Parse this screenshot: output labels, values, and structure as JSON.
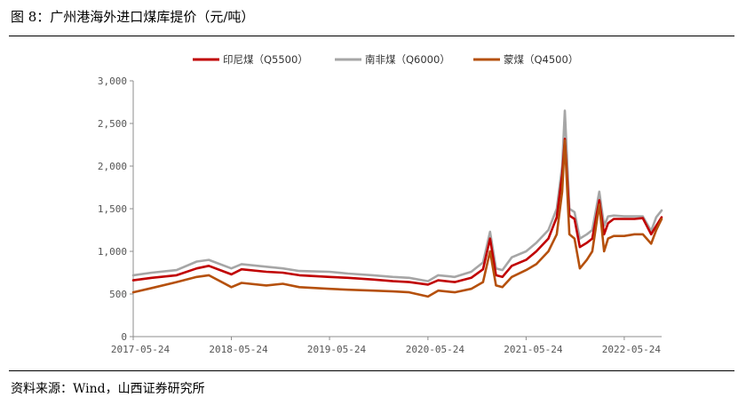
{
  "figure_title": "图 8：广州港海外进口煤库提价（元/吨）",
  "source_note": "资料来源：Wind，山西证券研究所",
  "chart_data": {
    "type": "line",
    "title": "",
    "xlabel": "",
    "ylabel": "",
    "ylim": [
      0,
      3000
    ],
    "yticks": [
      "0",
      "500",
      "1,000",
      "1,500",
      "2,000",
      "2,500",
      "3,000"
    ],
    "xticks": [
      "2017-05-24",
      "2018-05-24",
      "2019-05-24",
      "2020-05-24",
      "2021-05-24",
      "2022-05-24"
    ],
    "grid": false,
    "legend": "top-center",
    "series": [
      {
        "name": "印尼煤（Q5500）",
        "color": "#c00000",
        "x": [
          "2017-05-24",
          "2017-08-01",
          "2017-11-01",
          "2018-01-15",
          "2018-03-01",
          "2018-05-24",
          "2018-07-01",
          "2018-10-01",
          "2018-12-01",
          "2019-02-01",
          "2019-05-24",
          "2019-08-01",
          "2019-11-01",
          "2020-01-15",
          "2020-03-15",
          "2020-05-24",
          "2020-07-01",
          "2020-09-01",
          "2020-11-01",
          "2020-12-15",
          "2021-01-10",
          "2021-02-01",
          "2021-02-25",
          "2021-04-01",
          "2021-05-24",
          "2021-07-01",
          "2021-08-15",
          "2021-09-15",
          "2021-10-05",
          "2021-10-15",
          "2021-11-01",
          "2021-11-20",
          "2021-12-10",
          "2022-01-05",
          "2022-01-25",
          "2022-02-20",
          "2022-03-10",
          "2022-03-25",
          "2022-04-15",
          "2022-05-24",
          "2022-07-01",
          "2022-08-01",
          "2022-09-01",
          "2022-09-20",
          "2022-10-10"
        ],
        "y": [
          660,
          690,
          720,
          800,
          830,
          730,
          790,
          760,
          750,
          720,
          700,
          690,
          670,
          650,
          640,
          610,
          660,
          640,
          690,
          790,
          1150,
          720,
          700,
          830,
          900,
          1000,
          1150,
          1400,
          1900,
          2320,
          1420,
          1380,
          1050,
          1100,
          1150,
          1600,
          1200,
          1330,
          1380,
          1380,
          1380,
          1390,
          1200,
          1300,
          1400
        ]
      },
      {
        "name": "南非煤（Q6000）",
        "color": "#a6a6a6",
        "x": [
          "2017-05-24",
          "2017-08-01",
          "2017-11-01",
          "2018-01-15",
          "2018-03-01",
          "2018-05-24",
          "2018-07-01",
          "2018-10-01",
          "2018-12-01",
          "2019-02-01",
          "2019-05-24",
          "2019-08-01",
          "2019-11-01",
          "2020-01-15",
          "2020-03-15",
          "2020-05-24",
          "2020-07-01",
          "2020-09-01",
          "2020-11-01",
          "2020-12-15",
          "2021-01-10",
          "2021-02-01",
          "2021-02-25",
          "2021-04-01",
          "2021-05-24",
          "2021-07-01",
          "2021-08-15",
          "2021-09-15",
          "2021-10-05",
          "2021-10-15",
          "2021-11-01",
          "2021-11-20",
          "2021-12-10",
          "2022-01-05",
          "2022-01-25",
          "2022-02-20",
          "2022-03-10",
          "2022-03-25",
          "2022-04-15",
          "2022-05-24",
          "2022-07-01",
          "2022-08-01",
          "2022-09-01",
          "2022-09-20",
          "2022-10-10"
        ],
        "y": [
          720,
          750,
          780,
          880,
          900,
          800,
          850,
          820,
          800,
          770,
          760,
          740,
          720,
          700,
          690,
          650,
          720,
          700,
          760,
          870,
          1230,
          800,
          780,
          930,
          1000,
          1100,
          1250,
          1500,
          2000,
          2650,
          1500,
          1460,
          1150,
          1200,
          1250,
          1700,
          1300,
          1410,
          1420,
          1410,
          1410,
          1410,
          1240,
          1400,
          1480
        ]
      },
      {
        "name": "蒙煤（Q4500）",
        "color": "#b5500c",
        "x": [
          "2017-05-24",
          "2017-08-01",
          "2017-11-01",
          "2018-01-15",
          "2018-03-01",
          "2018-05-24",
          "2018-07-01",
          "2018-10-01",
          "2018-12-01",
          "2019-02-01",
          "2019-05-24",
          "2019-08-01",
          "2019-11-01",
          "2020-01-15",
          "2020-03-15",
          "2020-05-24",
          "2020-07-01",
          "2020-09-01",
          "2020-11-01",
          "2020-12-15",
          "2021-01-10",
          "2021-02-01",
          "2021-02-25",
          "2021-04-01",
          "2021-05-24",
          "2021-07-01",
          "2021-08-15",
          "2021-09-15",
          "2021-10-05",
          "2021-10-15",
          "2021-11-01",
          "2021-11-20",
          "2021-12-10",
          "2022-01-05",
          "2022-01-25",
          "2022-02-20",
          "2022-03-10",
          "2022-03-25",
          "2022-04-15",
          "2022-05-24",
          "2022-07-01",
          "2022-08-01",
          "2022-09-01",
          "2022-09-20",
          "2022-10-10"
        ],
        "y": [
          520,
          570,
          640,
          700,
          720,
          580,
          630,
          600,
          620,
          580,
          560,
          550,
          540,
          530,
          520,
          470,
          540,
          520,
          560,
          640,
          1000,
          600,
          580,
          700,
          780,
          850,
          1000,
          1200,
          1700,
          2300,
          1200,
          1150,
          800,
          900,
          1000,
          1550,
          1000,
          1150,
          1180,
          1180,
          1200,
          1200,
          1090,
          1250,
          1380
        ]
      }
    ]
  }
}
